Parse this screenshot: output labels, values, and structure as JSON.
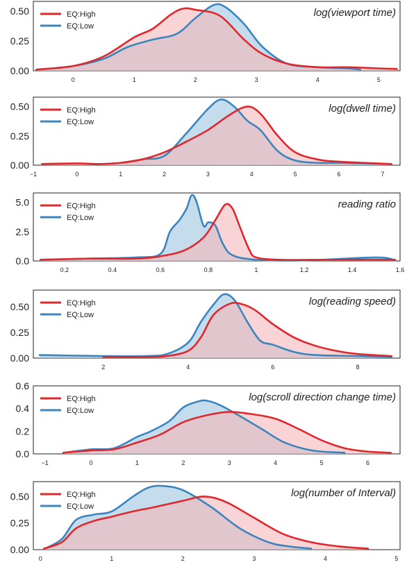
{
  "colors": {
    "high": "#e0282c",
    "low": "#3b84be",
    "high_fill": "#f4b8bb",
    "low_fill": "#9ec4e0"
  },
  "chart_data": [
    {
      "type": "area",
      "title": "log(viewport time)",
      "xticks": [
        0,
        1,
        2,
        3,
        4,
        5
      ],
      "xlim": [
        -0.65,
        5.35
      ],
      "yticks": [
        "0.00",
        "0.25",
        "0.50"
      ],
      "ylim": [
        0,
        0.58
      ],
      "legend_position": "top-left",
      "series": [
        {
          "name": "EQ:High",
          "x": [
            -0.6,
            0,
            0.5,
            1,
            1.3,
            1.6,
            1.8,
            2.0,
            2.4,
            2.8,
            3.1,
            3.5,
            4.0,
            4.5,
            5.0,
            5.3
          ],
          "y": [
            0.01,
            0.04,
            0.12,
            0.28,
            0.35,
            0.47,
            0.52,
            0.51,
            0.46,
            0.26,
            0.14,
            0.06,
            0.03,
            0.03,
            0.02,
            0.015
          ]
        },
        {
          "name": "EQ:Low",
          "x": [
            -0.6,
            0,
            0.5,
            0.9,
            1.3,
            1.7,
            2.0,
            2.3,
            2.5,
            2.8,
            3.1,
            3.5,
            4.0,
            4.5,
            4.7
          ],
          "y": [
            0.01,
            0.04,
            0.1,
            0.2,
            0.26,
            0.31,
            0.44,
            0.55,
            0.53,
            0.39,
            0.2,
            0.06,
            0.03,
            0.02,
            0.01
          ]
        }
      ]
    },
    {
      "type": "area",
      "title": "log(dwell time)",
      "xticks": [
        -1,
        0,
        1,
        2,
        3,
        4,
        5,
        6,
        7
      ],
      "xlim": [
        -1.0,
        7.4
      ],
      "yticks": [
        "0.00",
        "0.25",
        "0.50"
      ],
      "ylim": [
        0,
        0.58
      ],
      "legend_position": "top-left",
      "series": [
        {
          "name": "EQ:High",
          "x": [
            -0.8,
            0,
            0.5,
            1,
            1.5,
            2,
            2.5,
            3,
            3.5,
            3.9,
            4.2,
            4.6,
            5,
            5.5,
            6,
            7.2
          ],
          "y": [
            0.01,
            0.015,
            0.01,
            0.02,
            0.05,
            0.11,
            0.2,
            0.3,
            0.43,
            0.5,
            0.44,
            0.25,
            0.11,
            0.05,
            0.03,
            0.01
          ]
        },
        {
          "name": "EQ:Low",
          "x": [
            0.3,
            1,
            1.5,
            2,
            2.5,
            3,
            3.3,
            3.6,
            3.9,
            4.2,
            4.6,
            5,
            5.5,
            6,
            7.2
          ],
          "y": [
            0.005,
            0.02,
            0.05,
            0.08,
            0.27,
            0.48,
            0.56,
            0.5,
            0.38,
            0.3,
            0.12,
            0.04,
            0.02,
            0.02,
            0.01
          ]
        }
      ]
    },
    {
      "type": "area",
      "title": "reading ratio",
      "xticks": [
        0.2,
        0.4,
        0.6,
        0.8,
        1.0,
        1.2,
        1.4,
        1.6
      ],
      "xlim": [
        0.07,
        1.6
      ],
      "yticks": [
        "0.0",
        "2.5",
        "5.0"
      ],
      "ylim": [
        0,
        5.8
      ],
      "legend_position": "top-left",
      "series": [
        {
          "name": "EQ:High",
          "x": [
            0.1,
            0.3,
            0.5,
            0.6,
            0.7,
            0.78,
            0.83,
            0.87,
            0.9,
            0.93,
            0.97,
            1.0,
            1.1,
            1.3,
            1.58
          ],
          "y": [
            0.1,
            0.2,
            0.2,
            0.4,
            0.9,
            2.0,
            3.5,
            4.8,
            4.5,
            3.0,
            1.0,
            0.3,
            0.1,
            0.1,
            0.1
          ]
        },
        {
          "name": "EQ:Low",
          "x": [
            0.1,
            0.3,
            0.5,
            0.6,
            0.64,
            0.68,
            0.71,
            0.73,
            0.75,
            0.78,
            0.8,
            0.83,
            0.86,
            0.9,
            1.0,
            1.2,
            1.5,
            1.58
          ],
          "y": [
            0.1,
            0.2,
            0.3,
            0.6,
            2.5,
            3.5,
            4.5,
            5.6,
            5.1,
            3.0,
            3.3,
            3.0,
            1.5,
            0.5,
            0.1,
            0.05,
            0.3,
            0.05
          ]
        }
      ]
    },
    {
      "type": "area",
      "title": "log(reading speed)",
      "xticks": [
        2,
        4,
        6,
        8
      ],
      "xlim": [
        0.35,
        9.0
      ],
      "yticks": [
        "0.00",
        "0.25",
        "0.50"
      ],
      "ylim": [
        0,
        0.66
      ],
      "legend_position": "top-left",
      "series": [
        {
          "name": "EQ:High",
          "x": [
            2,
            3,
            3.5,
            4,
            4.3,
            4.6,
            5,
            5.3,
            5.6,
            6,
            6.5,
            7,
            7.5,
            8,
            8.8
          ],
          "y": [
            0.01,
            0.01,
            0.02,
            0.07,
            0.2,
            0.42,
            0.53,
            0.52,
            0.46,
            0.33,
            0.2,
            0.12,
            0.07,
            0.04,
            0.02
          ]
        },
        {
          "name": "EQ:Low",
          "x": [
            0.5,
            2,
            3,
            3.5,
            4,
            4.3,
            4.6,
            4.85,
            5.1,
            5.4,
            5.7,
            6,
            6.5,
            7,
            8,
            8.8
          ],
          "y": [
            0.03,
            0.02,
            0.02,
            0.04,
            0.15,
            0.35,
            0.52,
            0.62,
            0.56,
            0.35,
            0.17,
            0.13,
            0.06,
            0.03,
            0.02,
            0.01
          ]
        }
      ]
    },
    {
      "type": "area",
      "title": "log(scroll direction change time)",
      "xticks": [
        -1,
        0,
        1,
        2,
        3,
        4,
        5,
        6
      ],
      "xlim": [
        -1.25,
        6.7
      ],
      "yticks": [
        "0.0",
        "0.2",
        "0.4",
        "0.6"
      ],
      "ylim": [
        0,
        0.6
      ],
      "legend_position": "top-left",
      "series": [
        {
          "name": "EQ:High",
          "x": [
            -0.6,
            0,
            0.5,
            1,
            1.5,
            2,
            2.5,
            3,
            3.5,
            4,
            4.5,
            5,
            5.5,
            6,
            6.5
          ],
          "y": [
            0.01,
            0.03,
            0.04,
            0.1,
            0.17,
            0.28,
            0.34,
            0.37,
            0.35,
            0.31,
            0.22,
            0.12,
            0.05,
            0.02,
            0.01
          ]
        },
        {
          "name": "EQ:Low",
          "x": [
            -0.6,
            0,
            0.5,
            1,
            1.3,
            1.7,
            2.0,
            2.3,
            2.5,
            2.8,
            3.2,
            3.7,
            4.2,
            4.8,
            5.5
          ],
          "y": [
            0.01,
            0.04,
            0.05,
            0.15,
            0.2,
            0.29,
            0.41,
            0.46,
            0.47,
            0.43,
            0.34,
            0.22,
            0.1,
            0.03,
            0.01
          ]
        }
      ]
    },
    {
      "type": "area",
      "title": "log(number of Interval)",
      "xticks": [
        0,
        1,
        2,
        3,
        4,
        5
      ],
      "xlim": [
        -0.1,
        5.05
      ],
      "yticks": [
        "0.00",
        "0.25",
        "0.50"
      ],
      "ylim": [
        0,
        0.64
      ],
      "legend_position": "top-left",
      "series": [
        {
          "name": "EQ:High",
          "x": [
            0.05,
            0.3,
            0.5,
            0.75,
            1.0,
            1.3,
            1.6,
            2.0,
            2.3,
            2.6,
            3.0,
            3.4,
            3.8,
            4.2,
            4.6
          ],
          "y": [
            0.01,
            0.07,
            0.2,
            0.27,
            0.31,
            0.36,
            0.4,
            0.46,
            0.5,
            0.45,
            0.3,
            0.15,
            0.07,
            0.03,
            0.01
          ]
        },
        {
          "name": "EQ:Low",
          "x": [
            0.05,
            0.3,
            0.5,
            0.75,
            1.0,
            1.3,
            1.5,
            1.7,
            2.0,
            2.4,
            2.8,
            3.2,
            3.5,
            3.8
          ],
          "y": [
            0.005,
            0.1,
            0.28,
            0.33,
            0.36,
            0.5,
            0.58,
            0.6,
            0.56,
            0.4,
            0.2,
            0.07,
            0.03,
            0.01
          ]
        }
      ]
    }
  ]
}
